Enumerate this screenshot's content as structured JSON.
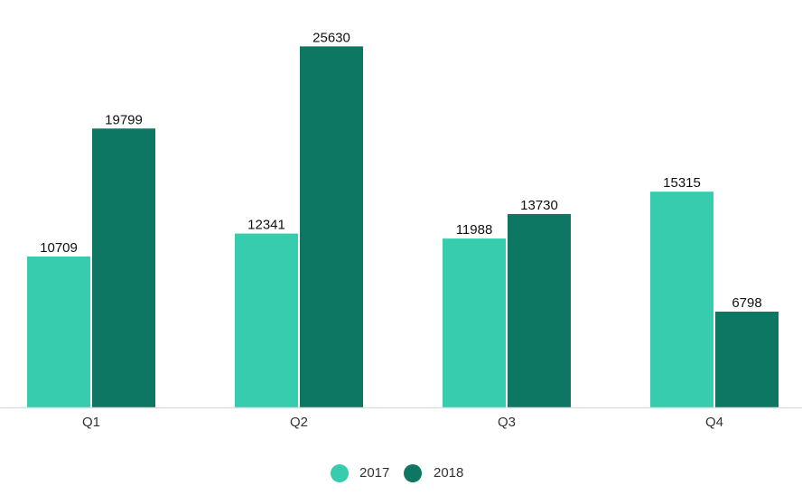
{
  "chart_data": {
    "type": "bar",
    "categories": [
      "Q1",
      "Q2",
      "Q3",
      "Q4"
    ],
    "series": [
      {
        "name": "2017",
        "color": "#38CCAF",
        "values": [
          10709,
          12341,
          11988,
          15315
        ]
      },
      {
        "name": "2018",
        "color": "#0E7763",
        "values": [
          19799,
          25630,
          13730,
          6798
        ]
      }
    ],
    "title": "",
    "xlabel": "",
    "ylabel": "",
    "ylim": [
      0,
      27000
    ],
    "grid": false,
    "legend_position": "bottom-center",
    "axis_color": "#DDDDDD"
  }
}
